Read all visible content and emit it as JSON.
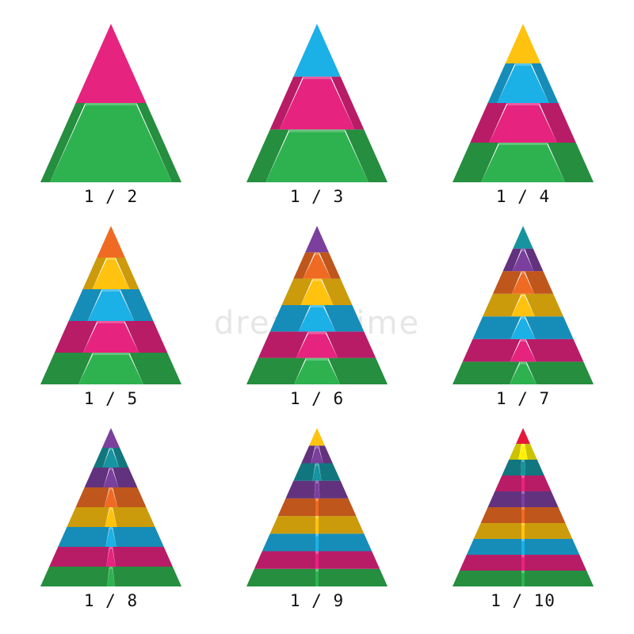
{
  "watermark": "dreamstime",
  "colors": {
    "green": "#2eb24f",
    "magenta": "#e6237f",
    "cyan": "#1bb0e6",
    "yellow": "#ffc20e",
    "orange": "#ef6b23",
    "purple": "#7b3f9d",
    "teal": "#16949f",
    "red": "#e5183a",
    "lemon": "#fff200"
  },
  "pyramids": [
    {
      "label": "1 / 2",
      "layers": [
        "green",
        "magenta"
      ]
    },
    {
      "label": "1 / 3",
      "layers": [
        "green",
        "magenta",
        "cyan"
      ]
    },
    {
      "label": "1 / 4",
      "layers": [
        "green",
        "magenta",
        "cyan",
        "yellow"
      ]
    },
    {
      "label": "1 / 5",
      "layers": [
        "green",
        "magenta",
        "cyan",
        "yellow",
        "orange"
      ]
    },
    {
      "label": "1 / 6",
      "layers": [
        "green",
        "magenta",
        "cyan",
        "yellow",
        "orange",
        "purple"
      ]
    },
    {
      "label": "1 / 7",
      "layers": [
        "green",
        "magenta",
        "cyan",
        "yellow",
        "orange",
        "purple",
        "teal"
      ]
    },
    {
      "label": "1 / 8",
      "layers": [
        "green",
        "magenta",
        "cyan",
        "yellow",
        "orange",
        "purple",
        "teal",
        "purple"
      ]
    },
    {
      "label": "1 / 9",
      "layers": [
        "green",
        "magenta",
        "cyan",
        "yellow",
        "orange",
        "purple",
        "teal",
        "purple",
        "yellow"
      ]
    },
    {
      "label": "1 / 10",
      "layers": [
        "green",
        "magenta",
        "cyan",
        "yellow",
        "orange",
        "purple",
        "magenta",
        "teal",
        "lemon",
        "red"
      ]
    }
  ]
}
